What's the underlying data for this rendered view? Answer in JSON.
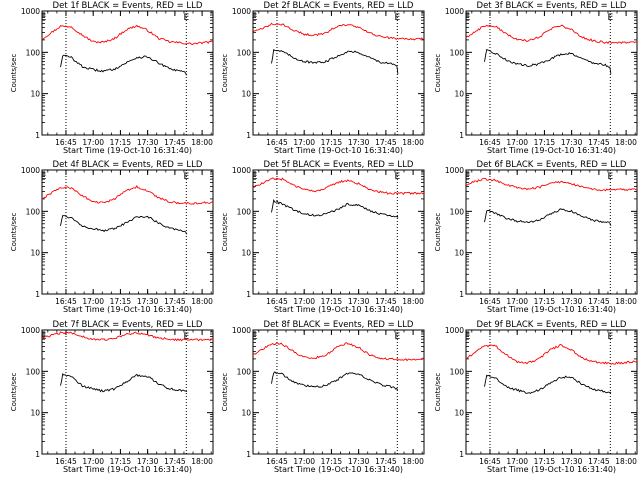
{
  "chart_data": [
    {
      "type": "line",
      "title": "Det 1f BLACK = Events, RED = LLD",
      "xlabel": "Start Time (19-Oct-10 16:31:40)",
      "ylabel": "Counts/sec",
      "yscale": "log",
      "ylim": [
        1,
        1000
      ],
      "xlim": [
        16.53,
        18.1
      ],
      "x_ticks": [
        "16:45",
        "17:00",
        "17:15",
        "17:30",
        "17:45",
        "18:00"
      ],
      "y_ticks": [
        "1",
        "10",
        "100",
        "1000"
      ],
      "markers": [
        {
          "label": "E",
          "hour": 16.545
        },
        {
          "label": "E",
          "hour": 17.855
        }
      ],
      "dotted_lines": [
        16.75,
        17.855
      ],
      "series": [
        {
          "name": "LLD",
          "color": "#ff0000",
          "x": [
            16.53,
            16.6,
            16.7,
            16.8,
            16.9,
            17.0,
            17.1,
            17.2,
            17.3,
            17.4,
            17.5,
            17.6,
            17.7,
            17.8,
            17.9,
            18.0,
            18.1
          ],
          "y": [
            210,
            280,
            430,
            420,
            260,
            180,
            175,
            220,
            350,
            440,
            340,
            220,
            180,
            170,
            160,
            170,
            180
          ]
        },
        {
          "name": "Events",
          "color": "#000000",
          "x": [
            16.7,
            16.72,
            16.8,
            16.9,
            17.0,
            17.1,
            17.2,
            17.3,
            17.4,
            17.5,
            17.6,
            17.7,
            17.8,
            17.85,
            17.86
          ],
          "y": [
            45,
            85,
            75,
            45,
            38,
            35,
            40,
            55,
            75,
            78,
            55,
            40,
            35,
            32,
            28
          ]
        }
      ]
    },
    {
      "type": "line",
      "title": "Det 2f BLACK = Events, RED = LLD",
      "xlabel": "Start Time (19-Oct-10 16:31:40)",
      "ylabel": "Counts/sec",
      "yscale": "log",
      "ylim": [
        1,
        1000
      ],
      "xlim": [
        16.53,
        18.1
      ],
      "x_ticks": [
        "16:45",
        "17:00",
        "17:15",
        "17:30",
        "17:45",
        "18:00"
      ],
      "y_ticks": [
        "1",
        "10",
        "100",
        "1000"
      ],
      "markers": [
        {
          "label": "E",
          "hour": 16.545
        },
        {
          "label": "E",
          "hour": 17.855
        }
      ],
      "dotted_lines": [
        16.75,
        17.855
      ],
      "series": [
        {
          "name": "LLD",
          "color": "#ff0000",
          "x": [
            16.53,
            16.6,
            16.7,
            16.8,
            16.9,
            17.0,
            17.1,
            17.2,
            17.3,
            17.4,
            17.5,
            17.6,
            17.7,
            17.8,
            17.9,
            18.0,
            18.1
          ],
          "y": [
            310,
            360,
            480,
            470,
            350,
            270,
            260,
            300,
            420,
            470,
            400,
            290,
            240,
            220,
            210,
            210,
            215
          ]
        },
        {
          "name": "Events",
          "color": "#000000",
          "x": [
            16.7,
            16.72,
            16.8,
            16.9,
            17.0,
            17.1,
            17.2,
            17.3,
            17.4,
            17.5,
            17.6,
            17.7,
            17.8,
            17.85,
            17.86
          ],
          "y": [
            55,
            115,
            105,
            75,
            60,
            55,
            60,
            80,
            105,
            100,
            75,
            58,
            52,
            48,
            30
          ]
        }
      ]
    },
    {
      "type": "line",
      "title": "Det 3f BLACK = Events, RED = LLD",
      "xlabel": "Start Time (19-Oct-10 16:31:40)",
      "ylabel": "Counts/sec",
      "yscale": "log",
      "ylim": [
        1,
        1000
      ],
      "xlim": [
        16.53,
        18.1
      ],
      "x_ticks": [
        "16:45",
        "17:00",
        "17:15",
        "17:30",
        "17:45",
        "18:00"
      ],
      "y_ticks": [
        "1",
        "10",
        "100",
        "1000"
      ],
      "markers": [
        {
          "label": "E",
          "hour": 16.545
        },
        {
          "label": "E",
          "hour": 17.855
        }
      ],
      "dotted_lines": [
        16.75,
        17.855
      ],
      "series": [
        {
          "name": "LLD",
          "color": "#ff0000",
          "x": [
            16.53,
            16.6,
            16.7,
            16.8,
            16.9,
            17.0,
            17.1,
            17.2,
            17.3,
            17.4,
            17.5,
            17.6,
            17.7,
            17.8,
            17.9,
            18.0,
            18.1
          ],
          "y": [
            230,
            300,
            440,
            430,
            280,
            200,
            190,
            230,
            360,
            450,
            350,
            230,
            190,
            175,
            170,
            175,
            180
          ]
        },
        {
          "name": "Events",
          "color": "#000000",
          "x": [
            16.7,
            16.72,
            16.8,
            16.9,
            17.0,
            17.1,
            17.2,
            17.3,
            17.4,
            17.5,
            17.6,
            17.7,
            17.8,
            17.85,
            17.86
          ],
          "y": [
            60,
            110,
            95,
            65,
            52,
            48,
            52,
            68,
            90,
            95,
            70,
            55,
            50,
            45,
            30
          ]
        }
      ]
    },
    {
      "type": "line",
      "title": "Det 4f BLACK = Events, RED = LLD",
      "xlabel": "Start Time (19-Oct-10 16:31:40)",
      "ylabel": "Counts/sec",
      "yscale": "log",
      "ylim": [
        1,
        1000
      ],
      "xlim": [
        16.53,
        18.1
      ],
      "x_ticks": [
        "16:45",
        "17:00",
        "17:15",
        "17:30",
        "17:45",
        "18:00"
      ],
      "y_ticks": [
        "1",
        "10",
        "100",
        "1000"
      ],
      "markers": [
        {
          "label": "E",
          "hour": 16.545
        },
        {
          "label": "E",
          "hour": 17.855
        }
      ],
      "dotted_lines": [
        16.75,
        17.855
      ],
      "series": [
        {
          "name": "LLD",
          "color": "#ff0000",
          "x": [
            16.53,
            16.6,
            16.7,
            16.8,
            16.9,
            17.0,
            17.1,
            17.2,
            17.3,
            17.4,
            17.5,
            17.6,
            17.7,
            17.8,
            17.9,
            18.0,
            18.1
          ],
          "y": [
            200,
            260,
            380,
            370,
            240,
            170,
            160,
            200,
            320,
            390,
            310,
            210,
            170,
            160,
            155,
            160,
            165
          ]
        },
        {
          "name": "Events",
          "color": "#000000",
          "x": [
            16.7,
            16.72,
            16.8,
            16.9,
            17.0,
            17.1,
            17.2,
            17.3,
            17.4,
            17.5,
            17.6,
            17.7,
            17.8,
            17.85,
            17.86
          ],
          "y": [
            45,
            80,
            70,
            45,
            38,
            34,
            38,
            52,
            72,
            75,
            52,
            40,
            35,
            32,
            28
          ]
        }
      ]
    },
    {
      "type": "line",
      "title": "Det 5f BLACK = Events, RED = LLD",
      "xlabel": "Start Time (19-Oct-10 16:31:40)",
      "ylabel": "Counts/sec",
      "yscale": "log",
      "ylim": [
        1,
        1000
      ],
      "xlim": [
        16.53,
        18.1
      ],
      "x_ticks": [
        "16:45",
        "17:00",
        "17:15",
        "17:30",
        "17:45",
        "18:00"
      ],
      "y_ticks": [
        "1",
        "10",
        "100",
        "1000"
      ],
      "markers": [
        {
          "label": "E",
          "hour": 16.545
        },
        {
          "label": "E",
          "hour": 17.855
        }
      ],
      "dotted_lines": [
        16.75,
        17.855
      ],
      "series": [
        {
          "name": "LLD",
          "color": "#ff0000",
          "x": [
            16.53,
            16.6,
            16.7,
            16.8,
            16.9,
            17.0,
            17.1,
            17.2,
            17.3,
            17.4,
            17.5,
            17.6,
            17.7,
            17.8,
            17.9,
            18.0,
            18.1
          ],
          "y": [
            380,
            450,
            610,
            600,
            440,
            330,
            310,
            360,
            500,
            560,
            470,
            340,
            290,
            270,
            270,
            275,
            280
          ]
        },
        {
          "name": "Events",
          "color": "#000000",
          "x": [
            16.7,
            16.72,
            16.8,
            16.9,
            17.0,
            17.1,
            17.2,
            17.3,
            17.4,
            17.5,
            17.6,
            17.7,
            17.8,
            17.85,
            17.86
          ],
          "y": [
            95,
            180,
            150,
            110,
            85,
            80,
            85,
            110,
            150,
            140,
            105,
            85,
            80,
            75,
            70
          ]
        }
      ]
    },
    {
      "type": "line",
      "title": "Det 6f BLACK = Events, RED = LLD",
      "xlabel": "Start Time (19-Oct-10 16:31:40)",
      "ylabel": "Counts/sec",
      "yscale": "log",
      "ylim": [
        1,
        1000
      ],
      "xlim": [
        16.53,
        18.1
      ],
      "x_ticks": [
        "16:45",
        "17:00",
        "17:15",
        "17:30",
        "17:45",
        "18:00"
      ],
      "y_ticks": [
        "1",
        "10",
        "100",
        "1000"
      ],
      "markers": [
        {
          "label": "E",
          "hour": 16.545
        },
        {
          "label": "E",
          "hour": 17.855
        }
      ],
      "dotted_lines": [
        16.75,
        17.855
      ],
      "series": [
        {
          "name": "LLD",
          "color": "#ff0000",
          "x": [
            16.53,
            16.6,
            16.7,
            16.8,
            16.9,
            17.0,
            17.1,
            17.2,
            17.3,
            17.4,
            17.5,
            17.6,
            17.7,
            17.8,
            17.9,
            18.0,
            18.1
          ],
          "y": [
            440,
            520,
            600,
            560,
            450,
            370,
            350,
            380,
            480,
            520,
            460,
            380,
            340,
            330,
            330,
            335,
            340
          ]
        },
        {
          "name": "Events",
          "color": "#000000",
          "x": [
            16.7,
            16.72,
            16.8,
            16.9,
            17.0,
            17.1,
            17.2,
            17.3,
            17.4,
            17.5,
            17.6,
            17.7,
            17.8,
            17.85,
            17.86
          ],
          "y": [
            55,
            105,
            90,
            68,
            58,
            55,
            60,
            85,
            110,
            100,
            75,
            60,
            55,
            52,
            45
          ]
        }
      ]
    },
    {
      "type": "line",
      "title": "Det 7f BLACK = Events, RED = LLD",
      "xlabel": "Start Time (19-Oct-10 16:31:40)",
      "ylabel": "Counts/sec",
      "yscale": "log",
      "ylim": [
        1,
        1000
      ],
      "xlim": [
        16.53,
        18.1
      ],
      "x_ticks": [
        "16:45",
        "17:00",
        "17:15",
        "17:30",
        "17:45",
        "18:00"
      ],
      "y_ticks": [
        "1",
        "10",
        "100",
        "1000"
      ],
      "markers": [
        {
          "label": "E",
          "hour": 16.545
        },
        {
          "label": "E",
          "hour": 17.855
        }
      ],
      "dotted_lines": [
        16.75,
        17.855
      ],
      "series": [
        {
          "name": "LLD",
          "color": "#ff0000",
          "x": [
            16.53,
            16.6,
            16.7,
            16.8,
            16.9,
            17.0,
            17.1,
            17.2,
            17.3,
            17.4,
            17.5,
            17.6,
            17.7,
            17.8,
            17.9,
            18.0,
            18.1
          ],
          "y": [
            620,
            720,
            850,
            840,
            700,
            600,
            580,
            620,
            780,
            850,
            760,
            640,
            600,
            580,
            570,
            590,
            600
          ]
        },
        {
          "name": "Events",
          "color": "#000000",
          "x": [
            16.7,
            16.72,
            16.8,
            16.9,
            17.0,
            17.1,
            17.2,
            17.3,
            17.4,
            17.5,
            17.6,
            17.7,
            17.8,
            17.85,
            17.86
          ],
          "y": [
            45,
            85,
            75,
            45,
            37,
            33,
            38,
            55,
            80,
            75,
            50,
            38,
            35,
            33,
            33
          ]
        }
      ]
    },
    {
      "type": "line",
      "title": "Det 8f BLACK = Events, RED = LLD",
      "xlabel": "Start Time (19-Oct-10 16:31:40)",
      "ylabel": "Counts/sec",
      "yscale": "log",
      "ylim": [
        1,
        1000
      ],
      "xlim": [
        16.53,
        18.1
      ],
      "x_ticks": [
        "16:45",
        "17:00",
        "17:15",
        "17:30",
        "17:45",
        "18:00"
      ],
      "y_ticks": [
        "1",
        "10",
        "100",
        "1000"
      ],
      "markers": [
        {
          "label": "E",
          "hour": 16.545
        },
        {
          "label": "E",
          "hour": 17.855
        }
      ],
      "dotted_lines": [
        16.75,
        17.855
      ],
      "series": [
        {
          "name": "LLD",
          "color": "#ff0000",
          "x": [
            16.53,
            16.6,
            16.7,
            16.8,
            16.9,
            17.0,
            17.1,
            17.2,
            17.3,
            17.4,
            17.5,
            17.6,
            17.7,
            17.8,
            17.9,
            18.0,
            18.1
          ],
          "y": [
            250,
            320,
            470,
            460,
            300,
            220,
            210,
            250,
            390,
            480,
            380,
            250,
            210,
            195,
            190,
            195,
            200
          ]
        },
        {
          "name": "Events",
          "color": "#000000",
          "x": [
            16.7,
            16.72,
            16.8,
            16.9,
            17.0,
            17.1,
            17.2,
            17.3,
            17.4,
            17.5,
            17.6,
            17.7,
            17.8,
            17.85,
            17.86
          ],
          "y": [
            50,
            95,
            85,
            55,
            45,
            42,
            45,
            62,
            90,
            88,
            62,
            48,
            42,
            38,
            36
          ]
        }
      ]
    },
    {
      "type": "line",
      "title": "Det 9f BLACK = Events, RED = LLD",
      "xlabel": "Start Time (19-Oct-10 16:31:40)",
      "ylabel": "Counts/sec",
      "yscale": "log",
      "ylim": [
        1,
        1000
      ],
      "xlim": [
        16.53,
        18.1
      ],
      "x_ticks": [
        "16:45",
        "17:00",
        "17:15",
        "17:30",
        "17:45",
        "18:00"
      ],
      "y_ticks": [
        "1",
        "10",
        "100",
        "1000"
      ],
      "markers": [
        {
          "label": "E",
          "hour": 16.545
        },
        {
          "label": "E",
          "hour": 17.855
        }
      ],
      "dotted_lines": [
        16.75,
        17.855
      ],
      "series": [
        {
          "name": "LLD",
          "color": "#ff0000",
          "x": [
            16.53,
            16.6,
            16.7,
            16.8,
            16.9,
            17.0,
            17.1,
            17.2,
            17.3,
            17.4,
            17.5,
            17.6,
            17.7,
            17.8,
            17.9,
            18.0,
            18.1
          ],
          "y": [
            200,
            270,
            420,
            410,
            250,
            170,
            160,
            200,
            330,
            430,
            330,
            210,
            170,
            160,
            155,
            165,
            175
          ]
        },
        {
          "name": "Events",
          "color": "#000000",
          "x": [
            16.7,
            16.72,
            16.8,
            16.9,
            17.0,
            17.1,
            17.2,
            17.3,
            17.4,
            17.5,
            17.6,
            17.7,
            17.8,
            17.85,
            17.86
          ],
          "y": [
            42,
            80,
            70,
            42,
            35,
            30,
            35,
            50,
            72,
            72,
            48,
            36,
            33,
            30,
            30
          ]
        }
      ]
    }
  ]
}
